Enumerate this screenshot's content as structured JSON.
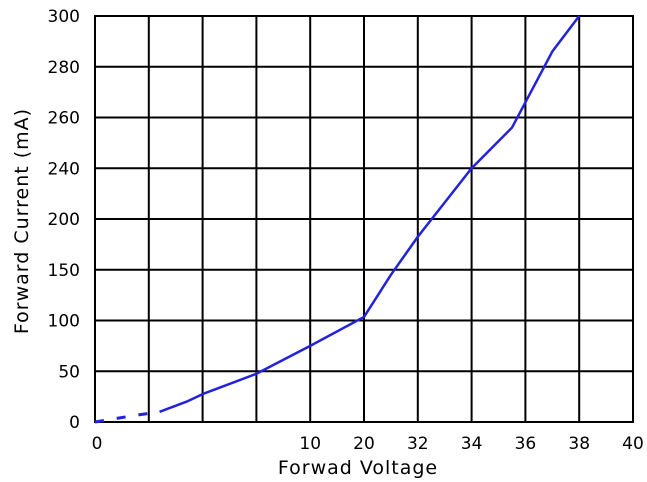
{
  "chart_data": {
    "type": "line",
    "title": "",
    "xlabel": "Forwad Voltage",
    "ylabel": "Forward Current (mA)",
    "x_tick_labels": [
      "0",
      "",
      "",
      "",
      "10",
      "20",
      "32",
      "34",
      "36",
      "38",
      "40"
    ],
    "y_tick_labels": [
      "0",
      "50",
      "100",
      "150",
      "200",
      "240",
      "260",
      "280",
      "300"
    ],
    "grid": true,
    "series": [
      {
        "color": "#2222dd",
        "points": [
          {
            "x_index": 0.0,
            "y_index": 0.0
          },
          {
            "x_index": 0.4,
            "y_index": 0.07
          },
          {
            "x_index": 0.8,
            "y_index": 0.14
          },
          {
            "x_index": 1.2,
            "y_index": 0.2
          },
          {
            "x_index": 1.7,
            "y_index": 0.4
          },
          {
            "x_index": 2.0,
            "y_index": 0.55
          },
          {
            "x_index": 3.0,
            "y_index": 0.95
          },
          {
            "x_index": 4.0,
            "y_index": 1.5
          },
          {
            "x_index": 5.0,
            "y_index": 2.07
          },
          {
            "x_index": 5.5,
            "y_index": 2.9
          },
          {
            "x_index": 6.0,
            "y_index": 3.65
          },
          {
            "x_index": 7.0,
            "y_index": 5.0
          },
          {
            "x_index": 7.75,
            "y_index": 5.8
          },
          {
            "x_index": 8.0,
            "y_index": 6.3
          },
          {
            "x_index": 8.5,
            "y_index": 7.3
          },
          {
            "x_index": 9.0,
            "y_index": 8.0
          }
        ]
      }
    ]
  }
}
